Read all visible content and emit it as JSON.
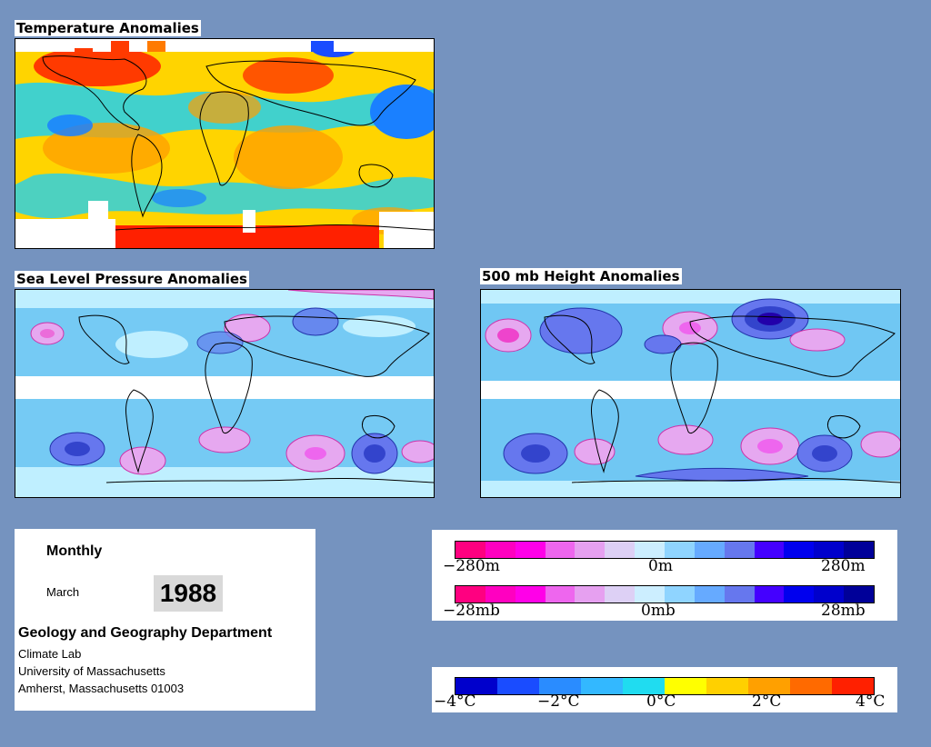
{
  "maps": {
    "temperature": {
      "title": "Temperature Anomalies"
    },
    "slp": {
      "title": "Sea Level Pressure Anomalies"
    },
    "height500": {
      "title": "500 mb Height Anomalies"
    }
  },
  "info": {
    "period": "Monthly",
    "month": "March",
    "year": "1988",
    "department": "Geology and Geography Department",
    "lab": "Climate Lab",
    "university": "University of Massachusetts",
    "address": "Amherst, Massachusetts 01003"
  },
  "legend_height": {
    "labels": [
      "−280m",
      "0m",
      "280m"
    ],
    "colors": [
      "#ff0080",
      "#ff00c0",
      "#ff00e8",
      "#ee66ee",
      "#e6a0f0",
      "#ddd0f5",
      "#cceeff",
      "#8fd4ff",
      "#66aaff",
      "#6677ee",
      "#4400ff",
      "#0000ee",
      "#0000cc",
      "#000099"
    ]
  },
  "legend_pressure": {
    "labels": [
      "−28mb",
      "0mb",
      "28mb"
    ],
    "colors": [
      "#ff0080",
      "#ff00c0",
      "#ff00e8",
      "#ee66ee",
      "#e6a0f0",
      "#ddd0f5",
      "#cceeff",
      "#8fd4ff",
      "#66aaff",
      "#6677ee",
      "#4400ff",
      "#0000ee",
      "#0000cc",
      "#000099"
    ]
  },
  "legend_temperature": {
    "labels": [
      "−4°C",
      "−2°C",
      "0°C",
      "2°C",
      "4°C"
    ],
    "colors": [
      "#0000cc",
      "#1a4cff",
      "#2a8cff",
      "#33b8ff",
      "#20dcf0",
      "#ffff00",
      "#ffd000",
      "#ffa000",
      "#ff6a00",
      "#ff2000"
    ]
  },
  "palette": {
    "background": "#7593bf",
    "temp_warm": "#ff8c1a",
    "temp_hot": "#ff1a00",
    "temp_mild": "#ffd400",
    "temp_cool": "#20d0f0",
    "temp_cold": "#1a80ff",
    "anom_light_blue": "#bfefff",
    "anom_blue": "#5cbdf0",
    "anom_dark_blue": "#3344cc",
    "anom_pink": "#e6a8f0",
    "anom_magenta": "#ee44cc"
  }
}
